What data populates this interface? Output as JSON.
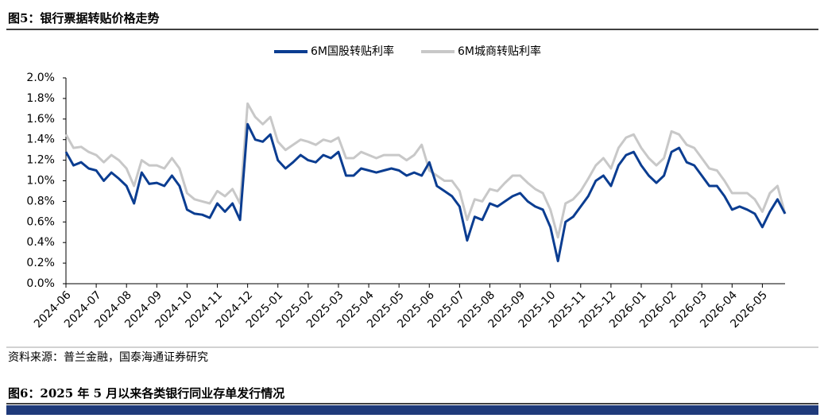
{
  "chart_data": {
    "type": "line",
    "title": "图5：银行票据转贴价格走势",
    "categories": [
      "2024-06",
      null,
      null,
      null,
      "2024-07",
      null,
      null,
      null,
      "2024-08",
      null,
      null,
      null,
      "2024-09",
      null,
      null,
      null,
      "2024-10",
      null,
      null,
      null,
      "2024-11",
      null,
      null,
      null,
      "2024-12",
      null,
      null,
      null,
      "2025-01",
      null,
      null,
      null,
      "2025-02",
      null,
      null,
      null,
      "2025-03",
      null,
      null,
      null,
      "2025-04",
      null,
      null,
      null,
      "2025-05",
      null,
      null,
      null,
      "2025-06",
      null,
      null,
      null,
      "2025-07",
      null,
      null,
      null,
      "2025-08",
      null,
      null,
      null,
      "2025-09",
      null,
      null,
      null,
      "2025-10",
      null,
      null,
      null,
      "2025-11",
      null,
      null,
      null,
      "2025-12",
      null,
      null,
      null,
      "2026-01",
      null,
      null,
      null,
      "2026-02",
      null,
      null,
      null,
      "2026-03",
      null,
      null,
      null,
      "2026-04",
      null,
      null,
      null,
      "2026-05",
      null,
      null,
      null
    ],
    "series": [
      {
        "name": "6M国股转贴利率",
        "color": "#0b3d91",
        "values": [
          1.28,
          1.15,
          1.18,
          1.12,
          1.1,
          1.0,
          1.08,
          1.02,
          0.95,
          0.78,
          1.08,
          0.97,
          0.98,
          0.95,
          1.05,
          0.95,
          0.72,
          0.68,
          0.67,
          0.64,
          0.78,
          0.7,
          0.78,
          0.62,
          1.55,
          1.4,
          1.38,
          1.45,
          1.2,
          1.12,
          1.18,
          1.25,
          1.2,
          1.18,
          1.25,
          1.22,
          1.28,
          1.05,
          1.05,
          1.12,
          1.1,
          1.08,
          1.1,
          1.12,
          1.1,
          1.05,
          1.08,
          1.05,
          1.18,
          0.95,
          0.9,
          0.85,
          0.75,
          0.42,
          0.65,
          0.62,
          0.78,
          0.75,
          0.8,
          0.85,
          0.88,
          0.8,
          0.75,
          0.72,
          0.55,
          0.22,
          0.6,
          0.65,
          0.75,
          0.85,
          1.0,
          1.05,
          0.95,
          1.15,
          1.25,
          1.28,
          1.15,
          1.05,
          0.98,
          1.05,
          1.28,
          1.32,
          1.18,
          1.15,
          1.05,
          0.95,
          0.95,
          0.85,
          0.72,
          0.75,
          0.72,
          0.68,
          0.55,
          0.7,
          0.82,
          0.68
        ]
      },
      {
        "name": "6M城商转贴利率",
        "color": "#c8c8c8",
        "values": [
          1.45,
          1.32,
          1.33,
          1.28,
          1.25,
          1.18,
          1.25,
          1.2,
          1.12,
          0.95,
          1.2,
          1.15,
          1.15,
          1.12,
          1.22,
          1.12,
          0.88,
          0.82,
          0.8,
          0.78,
          0.9,
          0.85,
          0.92,
          0.78,
          1.75,
          1.62,
          1.55,
          1.62,
          1.38,
          1.3,
          1.35,
          1.4,
          1.38,
          1.35,
          1.4,
          1.38,
          1.42,
          1.22,
          1.22,
          1.28,
          1.25,
          1.22,
          1.25,
          1.25,
          1.25,
          1.2,
          1.25,
          1.35,
          1.1,
          1.05,
          1.0,
          1.0,
          0.9,
          0.62,
          0.82,
          0.8,
          0.92,
          0.9,
          0.98,
          1.05,
          1.05,
          0.98,
          0.92,
          0.88,
          0.72,
          0.45,
          0.78,
          0.82,
          0.9,
          1.02,
          1.15,
          1.22,
          1.12,
          1.32,
          1.42,
          1.45,
          1.32,
          1.22,
          1.15,
          1.22,
          1.48,
          1.45,
          1.35,
          1.32,
          1.22,
          1.12,
          1.1,
          1.0,
          0.88,
          0.88,
          0.88,
          0.82,
          0.7,
          0.88,
          0.95,
          0.68
        ]
      }
    ],
    "ylim": [
      0,
      2
    ],
    "yticks": [
      {
        "value": 0,
        "label": "0.0%"
      },
      {
        "value": 0.2,
        "label": "0.2%"
      },
      {
        "value": 0.4,
        "label": "0.4%"
      },
      {
        "value": 0.6,
        "label": "0.6%"
      },
      {
        "value": 0.8,
        "label": "0.8%"
      },
      {
        "value": 1.0,
        "label": "1.0%"
      },
      {
        "value": 1.2,
        "label": "1.2%"
      },
      {
        "value": 1.4,
        "label": "1.4%"
      },
      {
        "value": 1.6,
        "label": "1.6%"
      },
      {
        "value": 1.8,
        "label": "1.8%"
      },
      {
        "value": 2.0,
        "label": "2.0%"
      }
    ],
    "grid": false,
    "legend": "top"
  },
  "source": "资料来源：普兰金融，国泰海通证券研究",
  "next_title": "图6：2025 年 5 月以来各类银行同业存单发行情况"
}
